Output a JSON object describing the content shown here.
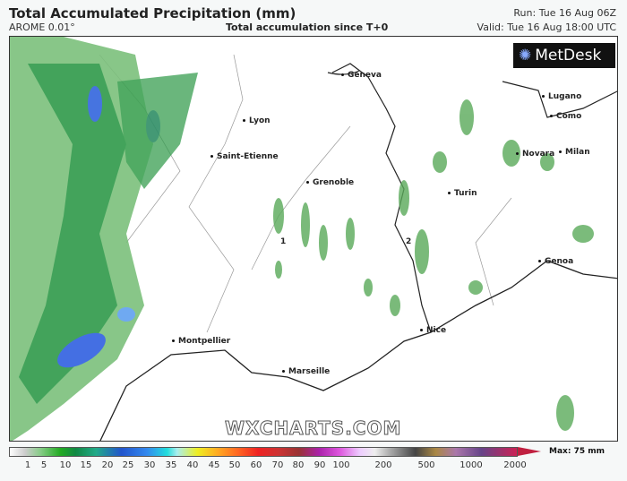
{
  "header": {
    "title": "Total Accumulated Precipitation (mm)",
    "model": "AROME 0.01°",
    "subtitle": "Total accumulation since T+0",
    "run": "Run: Tue 16 Aug 06Z",
    "valid": "Valid: Tue 16 Aug 18:00 UTC"
  },
  "map": {
    "cities": [
      "Geneva",
      "Lyon",
      "Saint-Etienne",
      "Grenoble",
      "Turin",
      "Lugano",
      "Como",
      "Novara",
      "Milan",
      "Genoa",
      "Nice",
      "Montpellier",
      "Marseille"
    ],
    "markers": [
      "1",
      "2"
    ],
    "logo": "MetDesk",
    "watermark": "WXCHARTS.COM"
  },
  "legend": {
    "ticks": [
      "1",
      "5",
      "10",
      "15",
      "20",
      "25",
      "30",
      "35",
      "40",
      "45",
      "50",
      "60",
      "70",
      "80",
      "90",
      "100",
      "200",
      "500",
      "1000",
      "2000"
    ],
    "max": "Max: 75 mm",
    "unit": "mm"
  },
  "colors": {
    "light_rain": "#3a9a3a",
    "heavy_rain": "#3060e0",
    "border": "#555555"
  }
}
